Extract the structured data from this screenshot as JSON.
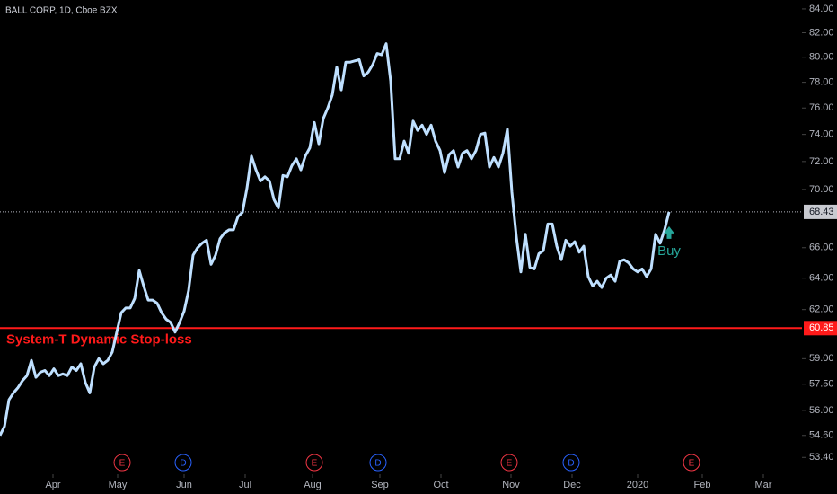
{
  "chart_data": {
    "type": "line",
    "title": "BALL CORP, 1D, Cboe BZX",
    "log_scale": true,
    "color": "#bfe0ff",
    "values": [
      54.6,
      55.1,
      56.6,
      57.0,
      57.3,
      57.7,
      58.0,
      58.9,
      57.9,
      58.2,
      58.3,
      58.0,
      58.4,
      58.0,
      58.1,
      58.0,
      58.5,
      58.3,
      58.7,
      57.6,
      57.0,
      58.5,
      59.0,
      58.7,
      58.9,
      59.4,
      60.6,
      61.8,
      62.1,
      62.1,
      62.7,
      64.5,
      63.5,
      62.6,
      62.6,
      62.4,
      61.8,
      61.4,
      61.2,
      60.6,
      61.2,
      61.9,
      63.2,
      65.5,
      66.0,
      66.3,
      66.5,
      64.9,
      65.5,
      66.6,
      67.0,
      67.2,
      67.2,
      68.1,
      68.4,
      70.1,
      72.4,
      71.4,
      70.6,
      70.9,
      70.6,
      69.3,
      68.7,
      71.0,
      70.9,
      71.7,
      72.2,
      71.4,
      72.4,
      73.0,
      74.9,
      73.3,
      75.2,
      76.0,
      77.0,
      79.2,
      77.4,
      79.6,
      79.6,
      79.7,
      79.8,
      78.5,
      78.8,
      79.4,
      80.3,
      80.2,
      81.1,
      78.1,
      72.2,
      72.2,
      73.5,
      72.6,
      75.0,
      74.3,
      74.7,
      74.0,
      74.7,
      73.5,
      72.8,
      71.2,
      72.5,
      72.8,
      71.6,
      72.6,
      72.8,
      72.2,
      72.8,
      74.0,
      74.1,
      71.6,
      72.3,
      71.6,
      72.6,
      74.4,
      69.8,
      66.7,
      64.4,
      66.9,
      64.7,
      64.6,
      65.6,
      65.8,
      67.6,
      67.6,
      66.1,
      65.2,
      66.5,
      66.1,
      66.4,
      65.7,
      66.1,
      64.1,
      63.5,
      63.8,
      63.4,
      64.0,
      64.2,
      63.8,
      65.1,
      65.2,
      65.0,
      64.6,
      64.4,
      64.6,
      64.1,
      64.6,
      66.9,
      66.3,
      67.2,
      68.43
    ],
    "ylim": [
      52.5,
      84.76
    ],
    "yticks": [
      {
        "value": 84,
        "label": "84.00"
      },
      {
        "value": 82,
        "label": "82.00"
      },
      {
        "value": 80,
        "label": "80.00"
      },
      {
        "value": 78,
        "label": "78.00"
      },
      {
        "value": 76,
        "label": "76.00"
      },
      {
        "value": 74,
        "label": "74.00"
      },
      {
        "value": 72,
        "label": "72.00"
      },
      {
        "value": 70,
        "label": "70.00"
      },
      {
        "value": 66,
        "label": "66.00"
      },
      {
        "value": 64,
        "label": "64.00"
      },
      {
        "value": 62,
        "label": "62.00"
      },
      {
        "value": 59,
        "label": "59.00"
      },
      {
        "value": 57.5,
        "label": "57.50"
      },
      {
        "value": 56,
        "label": "56.00"
      },
      {
        "value": 54.6,
        "label": "54.60"
      },
      {
        "value": 53.4,
        "label": "53.40"
      }
    ],
    "xlim": [
      0,
      178.6
    ],
    "xticks": [
      {
        "value": 11.8,
        "label": "Apr"
      },
      {
        "value": 26.2,
        "label": "May"
      },
      {
        "value": 41,
        "label": "Jun"
      },
      {
        "value": 54.6,
        "label": "Jul"
      },
      {
        "value": 69.6,
        "label": "Aug"
      },
      {
        "value": 84.6,
        "label": "Sep"
      },
      {
        "value": 98.2,
        "label": "Oct"
      },
      {
        "value": 113.8,
        "label": "Nov"
      },
      {
        "value": 127.4,
        "label": "Dec"
      },
      {
        "value": 142,
        "label": "2020"
      },
      {
        "value": 156.4,
        "label": "Feb"
      },
      {
        "value": 170,
        "label": "Mar"
      }
    ],
    "last_price": {
      "value": 68.43,
      "label": "68.43"
    },
    "stop_loss": {
      "value": 60.85,
      "label": "60.85",
      "name": "System-T Dynamic Stop-loss",
      "color": "#ff1a1a"
    },
    "buy_signal": {
      "index": 149,
      "label": "Buy",
      "color": "#26a69a"
    },
    "events": [
      {
        "label": "E",
        "x": 27.2,
        "color": "#f23645"
      },
      {
        "label": "D",
        "x": 40.8,
        "color": "#2962ff"
      },
      {
        "label": "E",
        "x": 70,
        "color": "#f23645"
      },
      {
        "label": "D",
        "x": 84.2,
        "color": "#2962ff"
      },
      {
        "label": "E",
        "x": 113.4,
        "color": "#f23645"
      },
      {
        "label": "D",
        "x": 127.2,
        "color": "#2962ff"
      },
      {
        "label": "E",
        "x": 154,
        "color": "#f23645"
      }
    ]
  }
}
